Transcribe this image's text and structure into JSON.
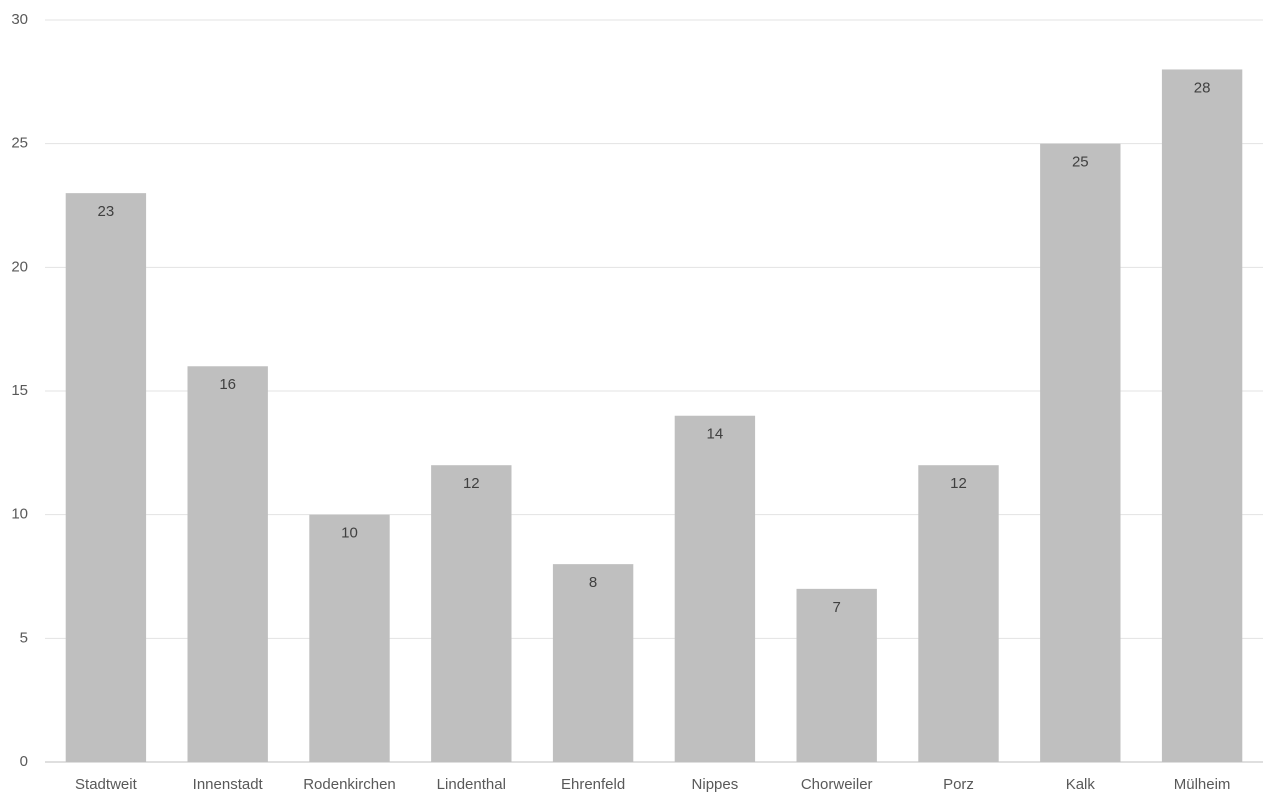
{
  "chart_data": {
    "type": "bar",
    "categories": [
      "Stadtweit",
      "Innenstadt",
      "Rodenkirchen",
      "Lindenthal",
      "Ehrenfeld",
      "Nippes",
      "Chorweiler",
      "Porz",
      "Kalk",
      "Mülheim"
    ],
    "values": [
      23,
      16,
      10,
      12,
      8,
      14,
      7,
      12,
      25,
      28
    ],
    "color": "#bfbfbf",
    "ylim": [
      0,
      30
    ],
    "yticks": [
      0,
      5,
      10,
      15,
      20,
      25,
      30
    ],
    "grid": true,
    "data_labels": true
  }
}
